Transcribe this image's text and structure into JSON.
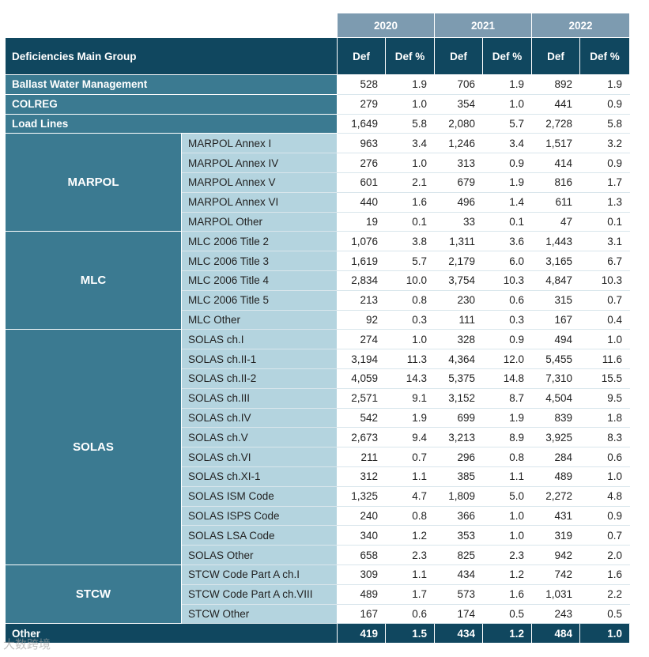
{
  "header": {
    "group_label": "Deficiencies Main Group",
    "years": [
      "2020",
      "2021",
      "2022"
    ],
    "col_def": "Def",
    "col_pct": "Def %"
  },
  "rows": [
    {
      "group": "Ballast Water Management",
      "sub": null,
      "v": [
        "528",
        "1.9",
        "706",
        "1.9",
        "892",
        "1.9"
      ]
    },
    {
      "group": "COLREG",
      "sub": null,
      "v": [
        "279",
        "1.0",
        "354",
        "1.0",
        "441",
        "0.9"
      ]
    },
    {
      "group": "Load Lines",
      "sub": null,
      "v": [
        "1,649",
        "5.8",
        "2,080",
        "5.7",
        "2,728",
        "5.8"
      ]
    },
    {
      "group": "MARPOL",
      "span": 5,
      "sub": "MARPOL Annex I",
      "v": [
        "963",
        "3.4",
        "1,246",
        "3.4",
        "1,517",
        "3.2"
      ]
    },
    {
      "sub": "MARPOL Annex IV",
      "v": [
        "276",
        "1.0",
        "313",
        "0.9",
        "414",
        "0.9"
      ]
    },
    {
      "sub": "MARPOL Annex V",
      "v": [
        "601",
        "2.1",
        "679",
        "1.9",
        "816",
        "1.7"
      ]
    },
    {
      "sub": "MARPOL Annex VI",
      "v": [
        "440",
        "1.6",
        "496",
        "1.4",
        "611",
        "1.3"
      ]
    },
    {
      "sub": "MARPOL Other",
      "v": [
        "19",
        "0.1",
        "33",
        "0.1",
        "47",
        "0.1"
      ]
    },
    {
      "group": "MLC",
      "span": 5,
      "sub": "MLC 2006 Title 2",
      "v": [
        "1,076",
        "3.8",
        "1,311",
        "3.6",
        "1,443",
        "3.1"
      ]
    },
    {
      "sub": "MLC 2006 Title 3",
      "v": [
        "1,619",
        "5.7",
        "2,179",
        "6.0",
        "3,165",
        "6.7"
      ]
    },
    {
      "sub": "MLC 2006 Title 4",
      "v": [
        "2,834",
        "10.0",
        "3,754",
        "10.3",
        "4,847",
        "10.3"
      ]
    },
    {
      "sub": "MLC 2006 Title 5",
      "v": [
        "213",
        "0.8",
        "230",
        "0.6",
        "315",
        "0.7"
      ]
    },
    {
      "sub": "MLC Other",
      "v": [
        "92",
        "0.3",
        "111",
        "0.3",
        "167",
        "0.4"
      ]
    },
    {
      "group": "SOLAS",
      "span": 12,
      "sub": "SOLAS ch.I",
      "v": [
        "274",
        "1.0",
        "328",
        "0.9",
        "494",
        "1.0"
      ]
    },
    {
      "sub": "SOLAS ch.II-1",
      "v": [
        "3,194",
        "11.3",
        "4,364",
        "12.0",
        "5,455",
        "11.6"
      ]
    },
    {
      "sub": "SOLAS ch.II-2",
      "v": [
        "4,059",
        "14.3",
        "5,375",
        "14.8",
        "7,310",
        "15.5"
      ]
    },
    {
      "sub": "SOLAS ch.III",
      "v": [
        "2,571",
        "9.1",
        "3,152",
        "8.7",
        "4,504",
        "9.5"
      ]
    },
    {
      "sub": "SOLAS ch.IV",
      "v": [
        "542",
        "1.9",
        "699",
        "1.9",
        "839",
        "1.8"
      ]
    },
    {
      "sub": "SOLAS ch.V",
      "v": [
        "2,673",
        "9.4",
        "3,213",
        "8.9",
        "3,925",
        "8.3"
      ]
    },
    {
      "sub": "SOLAS ch.VI",
      "v": [
        "211",
        "0.7",
        "296",
        "0.8",
        "284",
        "0.6"
      ]
    },
    {
      "sub": "SOLAS ch.XI-1",
      "v": [
        "312",
        "1.1",
        "385",
        "1.1",
        "489",
        "1.0"
      ]
    },
    {
      "sub": "SOLAS ISM Code",
      "v": [
        "1,325",
        "4.7",
        "1,809",
        "5.0",
        "2,272",
        "4.8"
      ]
    },
    {
      "sub": "SOLAS ISPS Code",
      "v": [
        "240",
        "0.8",
        "366",
        "1.0",
        "431",
        "0.9"
      ]
    },
    {
      "sub": "SOLAS LSA Code",
      "v": [
        "340",
        "1.2",
        "353",
        "1.0",
        "319",
        "0.7"
      ]
    },
    {
      "sub": "SOLAS Other",
      "v": [
        "658",
        "2.3",
        "825",
        "2.3",
        "942",
        "2.0"
      ]
    },
    {
      "group": "STCW",
      "span": 3,
      "sub": "STCW Code Part A ch.I",
      "v": [
        "309",
        "1.1",
        "434",
        "1.2",
        "742",
        "1.6"
      ]
    },
    {
      "sub": "STCW Code Part A ch.VIII",
      "v": [
        "489",
        "1.7",
        "573",
        "1.6",
        "1,031",
        "2.2"
      ]
    },
    {
      "sub": "STCW Other",
      "v": [
        "167",
        "0.6",
        "174",
        "0.5",
        "243",
        "0.5"
      ]
    }
  ],
  "footer": {
    "group": "Other",
    "v": [
      "419",
      "1.5",
      "434",
      "1.2",
      "484",
      "1.0"
    ]
  },
  "watermark": "大数跨境"
}
